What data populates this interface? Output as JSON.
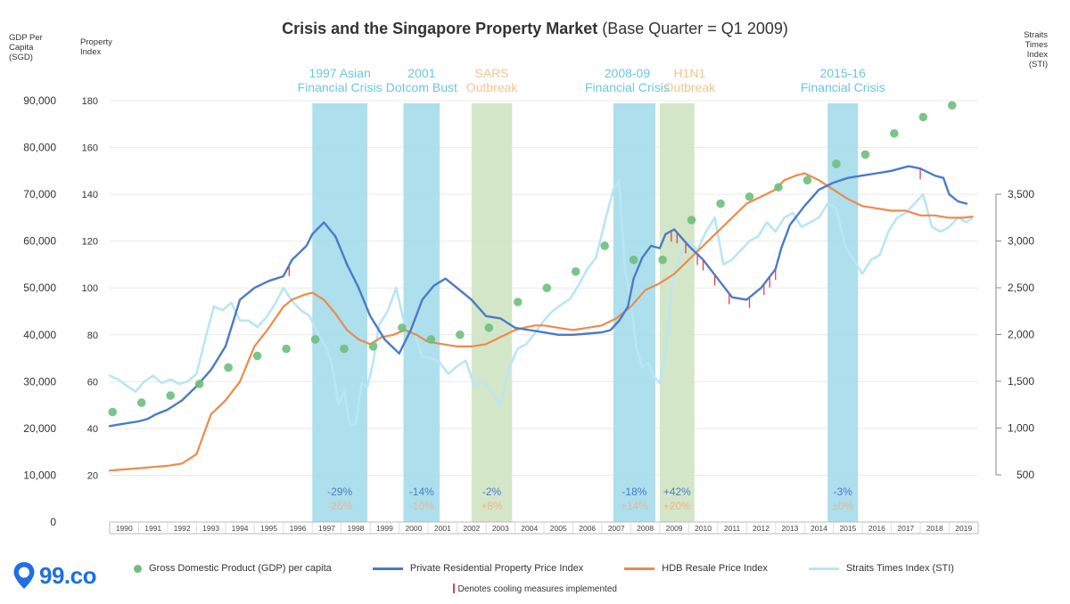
{
  "logo": {
    "text": "99.co",
    "color": "#1f6fe5"
  },
  "chart_data": {
    "type": "line",
    "title_bold": "Crisis and the Singapore Property Market",
    "title_rest": "(Base Quarter = Q1 2009)",
    "axis_left_gdp": {
      "label": "GDP Per Capita (SGD)",
      "ticks": [
        "0",
        "10,000",
        "20,000",
        "30,000",
        "40,000",
        "50,000",
        "60,000",
        "70,000",
        "80,000",
        "90,000"
      ],
      "range": [
        0,
        90000
      ]
    },
    "axis_left_index": {
      "label": "Property Index",
      "ticks": [
        "20",
        "40",
        "60",
        "80",
        "100",
        "120",
        "140",
        "160",
        "180"
      ],
      "range": [
        0,
        180
      ]
    },
    "axis_right_sti": {
      "label": "Straits Times Index (STI)",
      "ticks": [
        "500",
        "1,000",
        "1,500",
        "2,000",
        "2,500",
        "3,000",
        "3,500"
      ],
      "range": [
        500,
        3500
      ]
    },
    "x_years": [
      "1990",
      "1991",
      "1992",
      "1993",
      "1994",
      "1995",
      "1996",
      "1997",
      "1998",
      "1999",
      "2000",
      "2001",
      "2002",
      "2003",
      "2004",
      "2005",
      "2006",
      "2007",
      "2008",
      "2009",
      "2010",
      "2011",
      "2012",
      "2013",
      "2014",
      "2015",
      "2016",
      "2017",
      "2018",
      "2019"
    ],
    "crises": [
      {
        "label_1": "1997 Asian",
        "label_2": "Financial Crisis",
        "start": 1997.0,
        "end": 1998.9,
        "color": "#a4dcea",
        "pct_private": "-29%",
        "pct_hdb": "-26%"
      },
      {
        "label_1": "2001",
        "label_2": "Dotcom Bust",
        "start": 2000.15,
        "end": 2001.4,
        "color": "#a4dcea",
        "pct_private": "-14%",
        "pct_hdb": "-10%"
      },
      {
        "label_1": "SARS",
        "label_2": "Outbreak",
        "start": 2002.5,
        "end": 2003.9,
        "color": "#cfe3c2",
        "pct_private": "-2%",
        "pct_hdb": "+8%"
      },
      {
        "label_1": "2008-09",
        "label_2": "Financial Crisis",
        "start": 2007.4,
        "end": 2008.85,
        "color": "#a4dcea",
        "pct_private": "-18%",
        "pct_hdb": "+14%"
      },
      {
        "label_1": "H1N1",
        "label_2": "Outbreak",
        "start": 2009.0,
        "end": 2010.2,
        "color": "#cfe3c2",
        "pct_private": "+42%",
        "pct_hdb": "+20%"
      },
      {
        "label_1": "2015-16",
        "label_2": "Financial Crisis",
        "start": 2014.8,
        "end": 2015.85,
        "color": "#a4dcea",
        "pct_private": "-3%",
        "pct_hdb": "±0%"
      }
    ],
    "series": [
      {
        "name": "Gross Domestic Product (GDP) per capita",
        "kind": "scatter",
        "axis": "gdp",
        "color": "#6cc07c",
        "x": [
          1990,
          1991,
          1992,
          1993,
          1994,
          1995,
          1996,
          1997,
          1998,
          1999,
          2000,
          2001,
          2002,
          2003,
          2004,
          2005,
          2006,
          2007,
          2008,
          2009,
          2010,
          2011,
          2012,
          2013,
          2014,
          2015,
          2016,
          2017,
          2018,
          2019
        ],
        "y": [
          23500,
          25500,
          27000,
          29500,
          33000,
          35500,
          37000,
          39000,
          37000,
          37500,
          41500,
          39000,
          40000,
          41500,
          47000,
          50000,
          53500,
          59000,
          56000,
          56000,
          64500,
          68000,
          69500,
          71500,
          73000,
          76500,
          78500,
          83000,
          86500,
          89000
        ]
      },
      {
        "name": "Private Residential Property Price Index",
        "kind": "line",
        "axis": "index",
        "color": "#4a7bc8",
        "x": [
          1990.0,
          1990.5,
          1991.0,
          1991.3,
          1991.6,
          1992.0,
          1992.5,
          1993.0,
          1993.5,
          1994.0,
          1994.5,
          1995.0,
          1995.5,
          1996.0,
          1996.3,
          1996.8,
          1997.0,
          1997.4,
          1997.8,
          1998.2,
          1998.6,
          1999.0,
          1999.5,
          2000.0,
          2000.4,
          2000.8,
          2001.2,
          2001.6,
          2002.0,
          2002.5,
          2003.0,
          2003.5,
          2004.0,
          2004.5,
          2005.0,
          2005.5,
          2006.0,
          2006.5,
          2007.0,
          2007.3,
          2007.6,
          2007.9,
          2008.1,
          2008.4,
          2008.7,
          2009.0,
          2009.2,
          2009.5,
          2010.0,
          2010.5,
          2011.0,
          2011.5,
          2012.0,
          2012.5,
          2013.0,
          2013.2,
          2013.5,
          2014.0,
          2014.5,
          2015.0,
          2015.5,
          2016.0,
          2016.5,
          2017.0,
          2017.3,
          2017.6,
          2018.0,
          2018.5,
          2018.8,
          2019.0,
          2019.3,
          2019.6
        ],
        "y": [
          41,
          42,
          43,
          44,
          46,
          48,
          52,
          58,
          65,
          75,
          95,
          100,
          103,
          105,
          112,
          118,
          123,
          128,
          122,
          110,
          100,
          88,
          78,
          72,
          82,
          95,
          101,
          104,
          100,
          95,
          88,
          87,
          83,
          82,
          81,
          80,
          80,
          80.5,
          81,
          82,
          86,
          92,
          104,
          113,
          118,
          117,
          123,
          125,
          118,
          112,
          104,
          96,
          95,
          100,
          108,
          117,
          127,
          135,
          142,
          145,
          147,
          148,
          149,
          150,
          151,
          152,
          151,
          148,
          147,
          140,
          137,
          136
        ]
      },
      {
        "name": "HDB Resale Price Index",
        "kind": "line",
        "axis": "index",
        "color": "#ef8a4a",
        "x": [
          1990.0,
          1990.5,
          1991.0,
          1991.5,
          1992.0,
          1992.5,
          1993.0,
          1993.5,
          1994.0,
          1994.5,
          1995.0,
          1995.5,
          1996.0,
          1996.3,
          1996.7,
          1997.0,
          1997.4,
          1997.8,
          1998.2,
          1998.6,
          1999.0,
          1999.4,
          1999.8,
          2000.2,
          2000.6,
          2001.0,
          2001.5,
          2002.0,
          2002.5,
          2003.0,
          2003.5,
          2004.0,
          2004.3,
          2004.7,
          2005.0,
          2005.5,
          2006.0,
          2006.5,
          2007.0,
          2007.5,
          2008.0,
          2008.5,
          2009.0,
          2009.5,
          2010.0,
          2010.5,
          2011.0,
          2011.5,
          2012.0,
          2012.5,
          2013.0,
          2013.3,
          2013.7,
          2014.0,
          2014.5,
          2015.0,
          2015.5,
          2016.0,
          2016.5,
          2017.0,
          2017.5,
          2018.0,
          2018.5,
          2019.0,
          2019.5,
          2019.8
        ],
        "y": [
          22,
          22.5,
          23,
          23.5,
          24,
          25,
          29,
          46,
          52,
          60,
          75,
          83,
          92,
          95,
          97,
          98,
          95,
          89,
          82,
          78,
          76,
          79,
          80,
          82,
          80,
          77,
          76,
          75,
          75,
          76,
          79,
          82,
          83,
          84,
          84,
          83,
          82,
          83,
          84,
          87,
          92,
          99,
          102,
          106,
          112,
          118,
          124,
          130,
          136,
          139,
          142,
          146,
          148,
          149,
          146,
          142,
          138,
          135,
          134,
          133,
          133,
          131,
          131,
          130,
          130,
          130.5
        ]
      },
      {
        "name": "Straits Times Index (STI)",
        "kind": "line",
        "axis": "sti",
        "color": "#b9e6f5",
        "x": [
          1990.0,
          1990.3,
          1990.6,
          1990.9,
          1991.2,
          1991.5,
          1991.8,
          1992.1,
          1992.4,
          1992.7,
          1993.0,
          1993.3,
          1993.6,
          1993.9,
          1994.2,
          1994.5,
          1994.8,
          1995.1,
          1995.4,
          1995.7,
          1996.0,
          1996.3,
          1996.6,
          1996.9,
          1997.2,
          1997.5,
          1997.7,
          1997.9,
          1998.1,
          1998.3,
          1998.5,
          1998.7,
          1998.9,
          1999.1,
          1999.3,
          1999.6,
          1999.9,
          2000.2,
          2000.5,
          2000.8,
          2001.1,
          2001.4,
          2001.7,
          2002.0,
          2002.3,
          2002.6,
          2002.9,
          2003.2,
          2003.5,
          2003.8,
          2004.1,
          2004.4,
          2004.7,
          2005.0,
          2005.3,
          2005.6,
          2005.9,
          2006.2,
          2006.5,
          2006.8,
          2007.1,
          2007.4,
          2007.6,
          2007.8,
          2008.0,
          2008.2,
          2008.4,
          2008.6,
          2008.8,
          2009.0,
          2009.2,
          2009.4,
          2009.7,
          2010.0,
          2010.3,
          2010.6,
          2010.9,
          2011.2,
          2011.5,
          2011.8,
          2012.1,
          2012.4,
          2012.7,
          2013.0,
          2013.3,
          2013.6,
          2013.9,
          2014.2,
          2014.5,
          2014.8,
          2015.1,
          2015.4,
          2015.7,
          2016.0,
          2016.3,
          2016.6,
          2016.9,
          2017.2,
          2017.5,
          2017.8,
          2018.1,
          2018.4,
          2018.7,
          2019.0,
          2019.3,
          2019.6,
          2019.8
        ],
        "y": [
          1560,
          1520,
          1450,
          1390,
          1500,
          1560,
          1480,
          1520,
          1470,
          1500,
          1580,
          1950,
          2300,
          2260,
          2340,
          2150,
          2150,
          2080,
          2180,
          2320,
          2500,
          2360,
          2260,
          2200,
          2010,
          1850,
          1650,
          1250,
          1400,
          1020,
          1050,
          1480,
          1440,
          1700,
          2100,
          2250,
          2500,
          2080,
          2050,
          1760,
          1750,
          1700,
          1580,
          1660,
          1720,
          1450,
          1500,
          1380,
          1250,
          1650,
          1850,
          1900,
          2020,
          2150,
          2250,
          2320,
          2380,
          2530,
          2700,
          2820,
          3200,
          3550,
          3650,
          2700,
          2350,
          1850,
          1650,
          1700,
          1550,
          1480,
          1750,
          2500,
          2850,
          3000,
          2900,
          3100,
          3250,
          2750,
          2800,
          2900,
          3000,
          3050,
          3200,
          3100,
          3250,
          3300,
          3150,
          3200,
          3250,
          3400,
          3350,
          2950,
          2800,
          2650,
          2800,
          2850,
          3100,
          3250,
          3300,
          3400,
          3500,
          3150,
          3100,
          3150,
          3250,
          3200,
          3250
        ]
      }
    ],
    "cooling_measures": [
      1996.2,
      2009.4,
      2009.6,
      2009.9,
      2010.3,
      2010.5,
      2010.9,
      2011.4,
      2012.1,
      2012.6,
      2012.8,
      2013.0,
      2018.0
    ],
    "legend": [
      {
        "label": "Gross Domestic Product (GDP) per capita",
        "kind": "dot",
        "color": "#6cc07c"
      },
      {
        "label": "Private Residential Property Price Index",
        "kind": "line",
        "color": "#4a7bc8"
      },
      {
        "label": "HDB Resale Price Index",
        "kind": "line",
        "color": "#ef8a4a"
      },
      {
        "label": "Straits Times Index (STI)",
        "kind": "line",
        "color": "#b9e6f5"
      }
    ],
    "cooling_note": "Denotes cooling measures implemented",
    "colors": {
      "private": "#4a7bc8",
      "hdb": "#ef8a4a",
      "private_pct": "#4a7bc8",
      "hdb_pct": "#f0b48a",
      "cooling": "#e2414f"
    }
  }
}
